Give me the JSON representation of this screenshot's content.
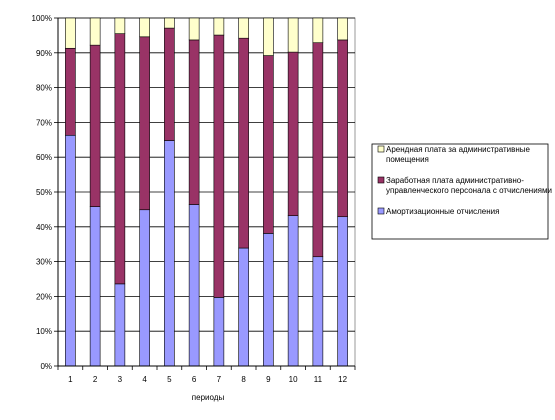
{
  "chart_data": {
    "type": "bar",
    "stacked": "percent",
    "xlabel": "периоды",
    "ylabel": "",
    "ylim": [
      0,
      100
    ],
    "y_ticks": [
      "0%",
      "10%",
      "20%",
      "30%",
      "40%",
      "50%",
      "60%",
      "70%",
      "80%",
      "90%",
      "100%"
    ],
    "grid": true,
    "legend_position": "right",
    "categories": [
      "1",
      "2",
      "3",
      "4",
      "5",
      "6",
      "7",
      "8",
      "9",
      "10",
      "11",
      "12"
    ],
    "series": [
      {
        "name": "Амортизационные отчисления",
        "color": "#9999ff",
        "values": [
          66.3,
          45.8,
          23.6,
          44.9,
          64.8,
          46.4,
          19.7,
          33.9,
          38.1,
          43.2,
          31.4,
          42.9
        ]
      },
      {
        "name": "Заработная плата административно-управленческого персонала с отчислениями",
        "color": "#993366",
        "values": [
          25.0,
          46.4,
          71.9,
          49.7,
          32.3,
          47.3,
          75.4,
          60.3,
          51.1,
          47.0,
          61.5,
          50.8
        ]
      },
      {
        "name": "Арендная плата за административные помещения",
        "color": "#ffffcc",
        "values": [
          8.7,
          7.8,
          4.5,
          5.4,
          2.9,
          6.3,
          4.9,
          5.8,
          10.8,
          9.8,
          7.1,
          6.3
        ]
      }
    ],
    "legend_entries": [
      [
        "Арендная плата за административные",
        "помещения"
      ],
      [
        "Заработная плата административно-",
        "управленческого персонала с отчислениями"
      ],
      [
        "Амортизационные отчисления"
      ]
    ]
  }
}
